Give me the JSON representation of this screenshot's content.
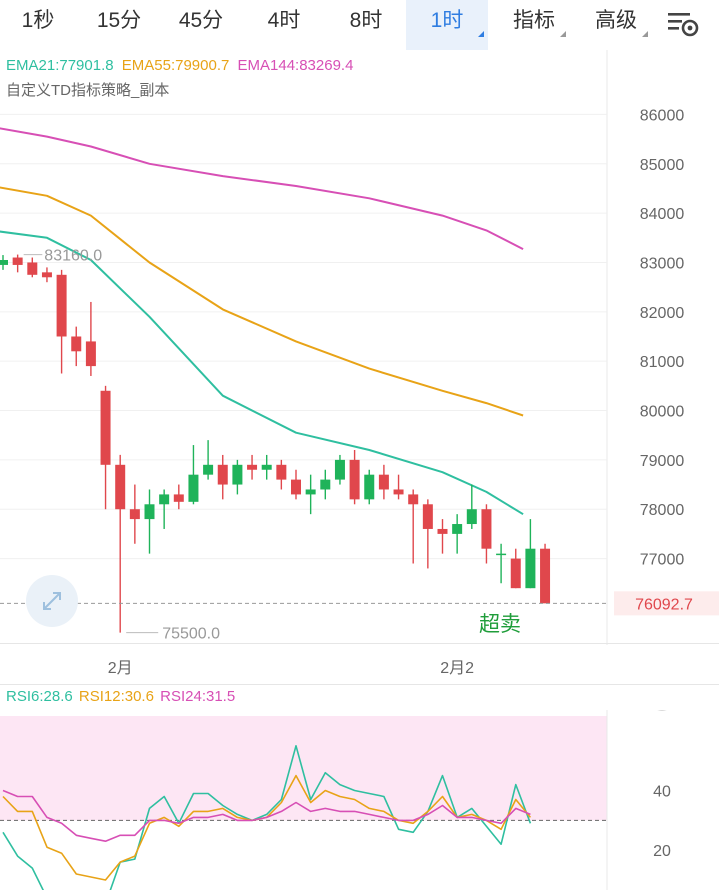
{
  "tabs": [
    {
      "label": "1秒"
    },
    {
      "label": "15分"
    },
    {
      "label": "45分"
    },
    {
      "label": "4时"
    },
    {
      "label": "8时"
    },
    {
      "label": "1时",
      "active": true
    },
    {
      "label": "指标"
    },
    {
      "label": "高级"
    }
  ],
  "settings_icon": "chart-settings-icon",
  "ema_legend": {
    "ema21": {
      "text": "EMA21:77901.8",
      "color": "#2fbfa0"
    },
    "ema55": {
      "text": "EMA55:79900.7",
      "color": "#e8a317"
    },
    "ema144": {
      "text": "EMA144:83269.4",
      "color": "#d74fb5"
    }
  },
  "indicator_name": "自定义TD指标策略_副本",
  "price_axis": [
    "86000",
    "85000",
    "84000",
    "83000",
    "82000",
    "81000",
    "80000",
    "79000",
    "78000",
    "77000"
  ],
  "price_range": [
    75350,
    86900
  ],
  "current_price": {
    "label": "76092.7",
    "value": 76092.7,
    "color": "#e0474c"
  },
  "high_marker": {
    "label": "83160.0",
    "value": 83160
  },
  "low_marker": {
    "label": "75500.0",
    "value": 75500
  },
  "signal_label": "超卖",
  "time_labels": [
    {
      "label": "2月",
      "index": 8
    },
    {
      "label": "2月2",
      "index": 31
    }
  ],
  "rsi_legend": {
    "rsi6": {
      "text": "RSI6:28.6",
      "color": "#2fbfa0"
    },
    "rsi12": {
      "text": "RSI12:30.6",
      "color": "#e8a317"
    },
    "rsi24": {
      "text": "RSI24:31.5",
      "color": "#d74fb5"
    }
  },
  "rsi_axis": [
    "40",
    "20"
  ],
  "rsi_range": [
    10,
    65
  ],
  "rsi_overbought_zone": [
    30,
    65
  ],
  "rsi_baseline": 30,
  "chart_data": {
    "type": "candlestick",
    "timeframe": "1时",
    "candles": [
      {
        "o": 82950,
        "h": 83150,
        "l": 82850,
        "c": 83050
      },
      {
        "o": 83100,
        "h": 83160,
        "l": 82800,
        "c": 82950
      },
      {
        "o": 83000,
        "h": 83100,
        "l": 82700,
        "c": 82750
      },
      {
        "o": 82800,
        "h": 82900,
        "l": 82600,
        "c": 82700
      },
      {
        "o": 82750,
        "h": 82850,
        "l": 80750,
        "c": 81500
      },
      {
        "o": 81500,
        "h": 81700,
        "l": 80900,
        "c": 81200
      },
      {
        "o": 81400,
        "h": 82200,
        "l": 80700,
        "c": 80900
      },
      {
        "o": 80400,
        "h": 80500,
        "l": 78000,
        "c": 78900
      },
      {
        "o": 78900,
        "h": 79100,
        "l": 75500,
        "c": 78000
      },
      {
        "o": 78000,
        "h": 78500,
        "l": 77300,
        "c": 77800
      },
      {
        "o": 77800,
        "h": 78400,
        "l": 77100,
        "c": 78100
      },
      {
        "o": 78100,
        "h": 78400,
        "l": 77600,
        "c": 78300
      },
      {
        "o": 78300,
        "h": 78500,
        "l": 78000,
        "c": 78150
      },
      {
        "o": 78150,
        "h": 79300,
        "l": 78100,
        "c": 78700
      },
      {
        "o": 78700,
        "h": 79400,
        "l": 78600,
        "c": 78900
      },
      {
        "o": 78900,
        "h": 79100,
        "l": 78200,
        "c": 78500
      },
      {
        "o": 78500,
        "h": 79000,
        "l": 78300,
        "c": 78900
      },
      {
        "o": 78900,
        "h": 79100,
        "l": 78600,
        "c": 78800
      },
      {
        "o": 78800,
        "h": 79100,
        "l": 78600,
        "c": 78900
      },
      {
        "o": 78900,
        "h": 79000,
        "l": 78400,
        "c": 78600
      },
      {
        "o": 78600,
        "h": 78800,
        "l": 78200,
        "c": 78300
      },
      {
        "o": 78300,
        "h": 78700,
        "l": 77900,
        "c": 78400
      },
      {
        "o": 78400,
        "h": 78800,
        "l": 78200,
        "c": 78600
      },
      {
        "o": 78600,
        "h": 79100,
        "l": 78500,
        "c": 79000
      },
      {
        "o": 79000,
        "h": 79200,
        "l": 78100,
        "c": 78200
      },
      {
        "o": 78200,
        "h": 78800,
        "l": 78100,
        "c": 78700
      },
      {
        "o": 78700,
        "h": 78900,
        "l": 78200,
        "c": 78400
      },
      {
        "o": 78400,
        "h": 78700,
        "l": 78200,
        "c": 78300
      },
      {
        "o": 78300,
        "h": 78400,
        "l": 76900,
        "c": 78100
      },
      {
        "o": 78100,
        "h": 78200,
        "l": 76800,
        "c": 77600
      },
      {
        "o": 77600,
        "h": 77800,
        "l": 77100,
        "c": 77500
      },
      {
        "o": 77500,
        "h": 77900,
        "l": 77100,
        "c": 77700
      },
      {
        "o": 77700,
        "h": 78500,
        "l": 77600,
        "c": 78000
      },
      {
        "o": 78000,
        "h": 78100,
        "l": 76900,
        "c": 77200
      },
      {
        "o": 77100,
        "h": 77300,
        "l": 76500,
        "c": 77100
      },
      {
        "o": 77000,
        "h": 77200,
        "l": 76400,
        "c": 76400
      },
      {
        "o": 76400,
        "h": 77800,
        "l": 76400,
        "c": 77200
      },
      {
        "o": 77200,
        "h": 77300,
        "l": 76100,
        "c": 76093
      }
    ],
    "series": [
      {
        "name": "EMA21",
        "x": [
          -0.8,
          3,
          6,
          10,
          15,
          20,
          25,
          30,
          33,
          35.5
        ],
        "y": [
          83650,
          83500,
          83050,
          81900,
          80300,
          79550,
          79200,
          78750,
          78350,
          77900
        ]
      },
      {
        "name": "EMA55",
        "x": [
          -0.8,
          3,
          6,
          10,
          15,
          20,
          25,
          30,
          33,
          35.5
        ],
        "y": [
          84550,
          84350,
          83950,
          83000,
          82050,
          81400,
          80850,
          80400,
          80150,
          79900
        ]
      },
      {
        "name": "EMA144",
        "x": [
          -0.8,
          3,
          6,
          10,
          15,
          20,
          25,
          30,
          33,
          35.5
        ],
        "y": [
          85750,
          85550,
          85350,
          85000,
          84750,
          84550,
          84300,
          83950,
          83650,
          83270
        ]
      }
    ],
    "rsi": [
      {
        "name": "RSI6",
        "values": [
          26,
          18,
          14,
          4,
          3,
          2,
          2,
          2,
          16,
          17,
          34,
          38,
          29,
          39,
          39,
          35,
          32,
          30,
          32,
          37,
          55,
          37,
          46,
          42,
          40,
          39,
          38,
          27,
          26,
          33,
          45,
          31,
          34,
          28,
          22,
          42,
          29
        ]
      },
      {
        "name": "RSI12",
        "values": [
          38,
          33,
          33,
          21,
          19,
          12,
          11,
          10,
          16,
          18,
          29,
          31,
          28,
          33,
          33,
          34,
          31,
          30,
          31,
          36,
          45,
          36,
          40,
          38,
          37,
          34,
          33,
          30,
          29,
          33,
          38,
          31,
          32,
          30,
          27,
          37,
          31
        ]
      },
      {
        "name": "RSI24",
        "values": [
          40,
          38,
          38,
          31,
          29,
          25,
          24,
          23,
          25,
          25,
          30,
          30,
          29,
          31,
          31,
          32,
          30,
          30,
          31,
          33,
          36,
          33,
          34,
          33,
          33,
          32,
          31,
          30,
          30,
          32,
          35,
          31,
          31,
          30,
          29,
          34,
          32
        ]
      }
    ]
  }
}
